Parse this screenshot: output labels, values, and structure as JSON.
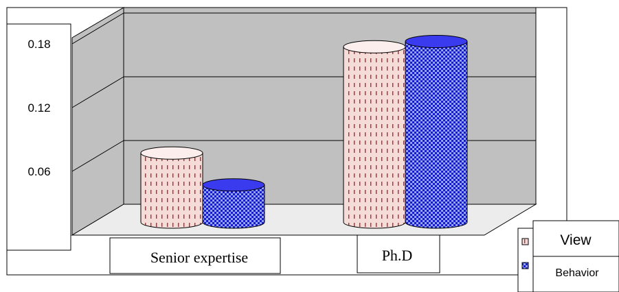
{
  "chart_data": {
    "type": "bar",
    "style": "3d-cylinder",
    "categories": [
      "Senior expertise",
      "Ph.D"
    ],
    "series": [
      {
        "name": "View",
        "values": [
          0.065,
          0.165
        ],
        "color": "#f5dcd8",
        "pattern_color": "#b8262e"
      },
      {
        "name": "Behavior",
        "values": [
          0.035,
          0.17
        ],
        "color": "#1a1acc",
        "pattern_color": "#9fb0ff"
      }
    ],
    "y_ticks": [
      "0.06",
      "0.12",
      "0.18"
    ],
    "ylim": [
      0,
      0.2
    ],
    "grid": true,
    "legend_position": "bottom-right",
    "wall_color": "#c0c0c0",
    "floor_color": "#ececec"
  }
}
